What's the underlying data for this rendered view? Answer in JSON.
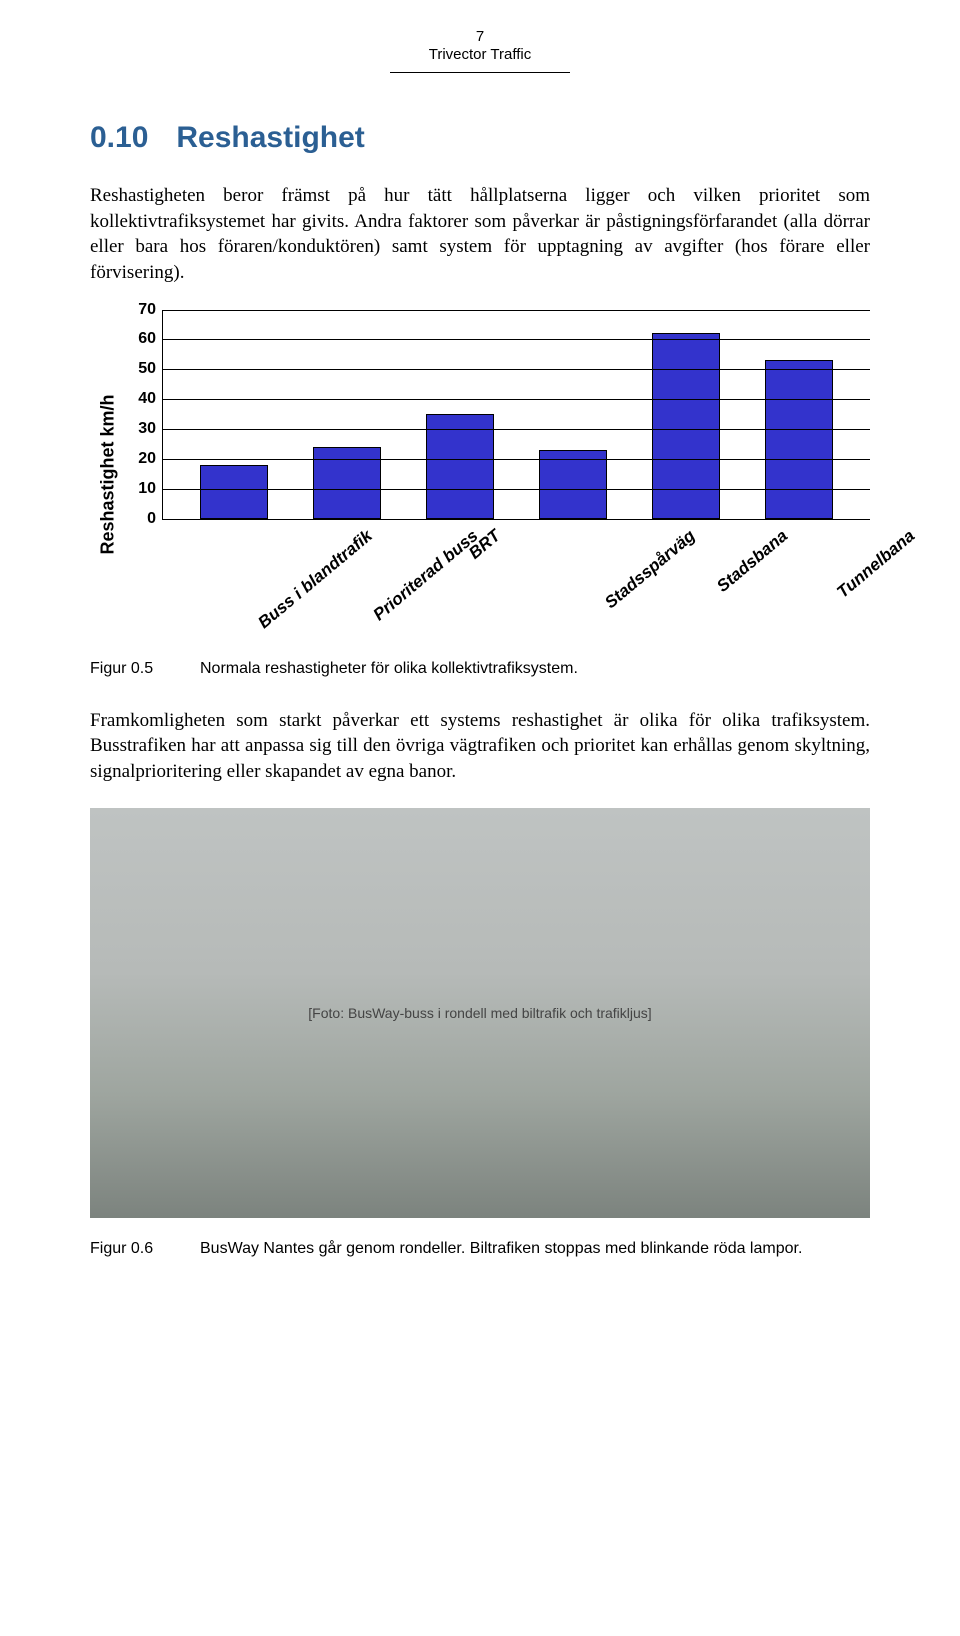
{
  "header": {
    "page_number": "7",
    "company": "Trivector Traffic"
  },
  "section": {
    "number": "0.10",
    "title": "Reshastighet"
  },
  "para1": "Reshastigheten beror främst på hur tätt hållplatserna ligger och vilken prioritet som kollektivtrafiksystemet har givits. Andra faktorer som påverkar är påstigningsförfarandet (alla dörrar eller bara hos föraren/konduktören) samt system för upptagning av avgifter (hos förare eller förvisering).",
  "chart": {
    "type": "bar",
    "y_label": "Reshastighet km/h",
    "y_max": 70,
    "y_ticks": [
      0,
      10,
      20,
      30,
      40,
      50,
      60,
      70
    ],
    "categories": [
      "Buss i blandtrafik",
      "Prioriterad buss",
      "BRT",
      "Stadsspårväg",
      "Stadsbana",
      "Tunnelbana"
    ],
    "values": [
      18,
      24,
      35,
      23,
      62,
      53
    ],
    "bar_color": "#3333cc",
    "grid_color": "#000000",
    "background_color": "#ffffff",
    "label_fontsize": 16,
    "xlabel_fontsize": 17,
    "xlabel_rotation_deg": -40
  },
  "fig5": {
    "num": "Figur 0.5",
    "text": "Normala reshastigheter för olika kollektivtrafiksystem."
  },
  "para2": "Framkomligheten som starkt påverkar ett systems reshastighet är olika för olika trafiksystem. Busstrafiken har att anpassa sig till den övriga vägtrafiken och prioritet kan erhållas genom skyltning, signalprioritering eller skapandet av egna banor.",
  "photo_alt": "[Foto: BusWay-buss i rondell med biltrafik och trafikljus]",
  "fig6": {
    "num": "Figur 0.6",
    "text": "BusWay Nantes går genom rondeller. Biltrafiken stoppas med blinkande röda lampor."
  }
}
